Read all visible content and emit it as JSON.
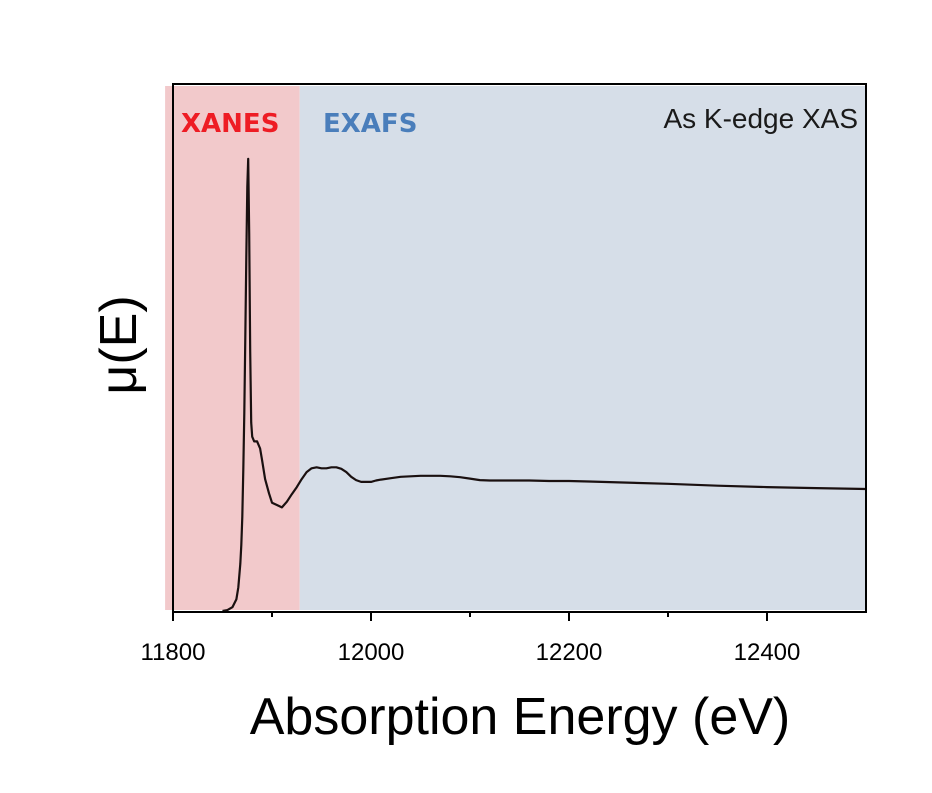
{
  "chart_data": {
    "type": "line",
    "title": "",
    "annotation": "As K-edge XAS",
    "xlabel": "Absorption Energy (eV)",
    "ylabel": "μ(E)",
    "xlim": [
      11800,
      12500
    ],
    "ylim": [
      0,
      1.0
    ],
    "xticks": [
      "11800",
      "12000",
      "12200",
      "12400"
    ],
    "yticks": [],
    "grid": false,
    "regions": [
      {
        "name": "XANES",
        "x_range": [
          11792,
          11928
        ],
        "fill": "#f2c9cb",
        "label_color": "#ee1c24"
      },
      {
        "name": "EXAFS",
        "x_range": [
          11928,
          12500
        ],
        "fill": "#d6dee8",
        "label_color": "#4a7ebb"
      }
    ],
    "series": [
      {
        "color": "#1a1010",
        "x": [
          11850,
          11855,
          11860,
          11864,
          11866,
          11868,
          11869,
          11870,
          11871,
          11872,
          11873,
          11874,
          11875,
          11876,
          11877,
          11878,
          11879,
          11880,
          11882,
          11885,
          11888,
          11890,
          11893,
          11897,
          11900,
          11905,
          11910,
          11915,
          11920,
          11925,
          11930,
          11935,
          11940,
          11945,
          11950,
          11955,
          11960,
          11965,
          11970,
          11975,
          11980,
          11985,
          11990,
          11995,
          12000,
          12005,
          12010,
          12020,
          12030,
          12040,
          12050,
          12060,
          12070,
          12080,
          12090,
          12100,
          12110,
          12120,
          12140,
          12160,
          12180,
          12200,
          12220,
          12250,
          12300,
          12350,
          12400,
          12450,
          12500
        ],
        "y": [
          0.0,
          0.002,
          0.008,
          0.025,
          0.05,
          0.1,
          0.14,
          0.2,
          0.3,
          0.42,
          0.58,
          0.75,
          0.9,
          0.96,
          0.8,
          0.55,
          0.4,
          0.37,
          0.36,
          0.36,
          0.345,
          0.32,
          0.28,
          0.25,
          0.23,
          0.225,
          0.22,
          0.232,
          0.248,
          0.263,
          0.28,
          0.295,
          0.303,
          0.305,
          0.303,
          0.303,
          0.305,
          0.305,
          0.302,
          0.295,
          0.285,
          0.278,
          0.274,
          0.274,
          0.274,
          0.277,
          0.279,
          0.282,
          0.285,
          0.286,
          0.287,
          0.287,
          0.287,
          0.286,
          0.284,
          0.281,
          0.278,
          0.277,
          0.277,
          0.277,
          0.276,
          0.276,
          0.275,
          0.273,
          0.27,
          0.266,
          0.263,
          0.261,
          0.259
        ]
      }
    ]
  }
}
